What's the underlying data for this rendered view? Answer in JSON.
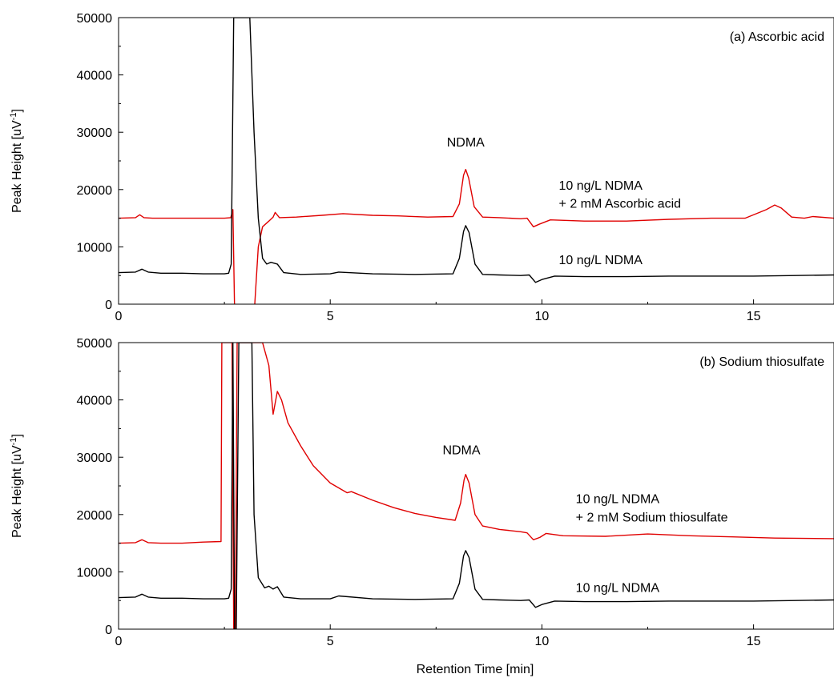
{
  "chart_data": [
    {
      "type": "line",
      "title": "",
      "panel_label": "(a) Ascorbic acid",
      "xlabel": "",
      "ylabel": "Peak Height [uV⁻¹]",
      "ylabel_base": "Peak Height [uV",
      "ylabel_sup": "-1",
      "ylabel_end": "]",
      "xlim": [
        0,
        16.9
      ],
      "ylim": [
        0,
        50000
      ],
      "x_ticks": [
        0,
        5,
        10,
        15
      ],
      "y_ticks": [
        0,
        10000,
        20000,
        30000,
        40000,
        50000
      ],
      "x_tick_labels": [
        "0",
        "5",
        "10",
        "15"
      ],
      "y_tick_labels": [
        "0",
        "10000",
        "20000",
        "30000",
        "40000",
        "50000"
      ],
      "grid": false,
      "annotations": [
        {
          "text": "NDMA",
          "x": 8.2,
          "y": 27500
        },
        {
          "text": "10 ng/L NDMA",
          "x": 10.4,
          "y": 20000
        },
        {
          "text": "+ 2 mM Ascorbic acid",
          "x": 10.4,
          "y": 16800
        },
        {
          "text": "10 ng/L NDMA",
          "x": 10.4,
          "y": 7000
        }
      ],
      "series": [
        {
          "color": "#e00000",
          "x": [
            0,
            0.4,
            0.5,
            0.6,
            0.8,
            1.5,
            2.0,
            2.5,
            2.65,
            2.7,
            2.74,
            2.78,
            2.85,
            3.2,
            3.3,
            3.4,
            3.55,
            3.65,
            3.7,
            3.8,
            4.2,
            4.8,
            5.3,
            6.0,
            6.6,
            7.3,
            7.9,
            8.05,
            8.15,
            8.2,
            8.27,
            8.4,
            8.6,
            9.0,
            9.5,
            9.65,
            9.8,
            9.95,
            10.2,
            11.0,
            12.0,
            13.0,
            14.0,
            14.8,
            15.3,
            15.5,
            15.65,
            15.9,
            16.2,
            16.4,
            16.9
          ],
          "y": [
            15000,
            15100,
            15600,
            15100,
            15000,
            15000,
            15000,
            15000,
            15100,
            16500,
            -1000,
            -3000,
            -1000,
            -2000,
            10000,
            13500,
            14500,
            15200,
            16000,
            15100,
            15200,
            15500,
            15800,
            15500,
            15400,
            15200,
            15300,
            17500,
            22500,
            23500,
            22000,
            17000,
            15200,
            15100,
            14900,
            15000,
            13500,
            14000,
            14700,
            14500,
            14500,
            14800,
            15000,
            15000,
            16500,
            17300,
            16800,
            15200,
            15000,
            15300,
            15000
          ]
        },
        {
          "color": "#000000",
          "x": [
            0,
            0.4,
            0.55,
            0.7,
            1.0,
            1.5,
            2.0,
            2.5,
            2.6,
            2.66,
            2.72,
            2.8,
            2.88,
            3.1,
            3.2,
            3.3,
            3.4,
            3.5,
            3.6,
            3.75,
            3.9,
            4.3,
            5.0,
            5.2,
            6.0,
            7.0,
            7.9,
            8.05,
            8.15,
            8.2,
            8.28,
            8.42,
            8.6,
            9.0,
            9.5,
            9.7,
            9.85,
            10.0,
            10.3,
            11.0,
            12.0,
            13.0,
            14.0,
            15.0,
            16.0,
            16.9
          ],
          "y": [
            5500,
            5600,
            6100,
            5600,
            5400,
            5400,
            5300,
            5300,
            5400,
            7000,
            50000,
            50000,
            50000,
            50000,
            30000,
            15000,
            8000,
            7000,
            7300,
            7000,
            5500,
            5200,
            5300,
            5600,
            5300,
            5200,
            5300,
            8000,
            12700,
            13700,
            12500,
            7000,
            5200,
            5100,
            5000,
            5100,
            3800,
            4300,
            4900,
            4800,
            4800,
            4900,
            4900,
            4900,
            5000,
            5100
          ]
        }
      ]
    },
    {
      "type": "line",
      "title": "",
      "panel_label": "(b) Sodium thiosulfate",
      "xlabel": "Retention Time [min]",
      "ylabel": "Peak Height [uV⁻¹]",
      "ylabel_base": "Peak Height [uV",
      "ylabel_sup": "-1",
      "ylabel_end": "]",
      "xlim": [
        0,
        16.9
      ],
      "ylim": [
        0,
        50000
      ],
      "x_ticks": [
        0,
        5,
        10,
        15
      ],
      "y_ticks": [
        0,
        10000,
        20000,
        30000,
        40000,
        50000
      ],
      "x_tick_labels": [
        "0",
        "5",
        "10",
        "15"
      ],
      "y_tick_labels": [
        "0",
        "10000",
        "20000",
        "30000",
        "40000",
        "50000"
      ],
      "grid": false,
      "annotations": [
        {
          "text": "NDMA",
          "x": 8.1,
          "y": 30500
        },
        {
          "text": "10 ng/L NDMA",
          "x": 10.8,
          "y": 22000
        },
        {
          "text": "+ 2 mM Sodium thiosulfate",
          "x": 10.8,
          "y": 18800
        },
        {
          "text": "10 ng/L NDMA",
          "x": 10.8,
          "y": 6500
        }
      ],
      "series": [
        {
          "color": "#e00000",
          "x": [
            0,
            0.4,
            0.55,
            0.7,
            1.0,
            1.5,
            2.0,
            2.42,
            2.44,
            2.46,
            2.5,
            2.55,
            2.58,
            2.62,
            2.68,
            2.72,
            2.76,
            2.8,
            3.0,
            3.4,
            3.55,
            3.65,
            3.75,
            3.85,
            4.0,
            4.3,
            4.6,
            5.0,
            5.4,
            5.5,
            6.0,
            6.5,
            7.0,
            7.5,
            7.95,
            8.08,
            8.16,
            8.2,
            8.28,
            8.42,
            8.6,
            9.0,
            9.5,
            9.65,
            9.8,
            9.95,
            10.1,
            10.5,
            11.5,
            12.5,
            13.5,
            14.5,
            15.5,
            16.9
          ],
          "y": [
            15000,
            15100,
            15600,
            15100,
            15000,
            15000,
            15200,
            15300,
            50000,
            50000,
            50000,
            50000,
            50000,
            50000,
            50000,
            0,
            0,
            50000,
            50000,
            50000,
            46000,
            37500,
            41500,
            40000,
            36000,
            32000,
            28500,
            25500,
            23800,
            24000,
            22500,
            21200,
            20200,
            19500,
            19000,
            22000,
            26000,
            27000,
            25500,
            20000,
            18000,
            17400,
            17000,
            16800,
            15600,
            16000,
            16700,
            16300,
            16200,
            16600,
            16300,
            16100,
            15900,
            15800
          ]
        },
        {
          "color": "#000000",
          "x": [
            0,
            0.4,
            0.55,
            0.7,
            1.0,
            1.5,
            2.0,
            2.5,
            2.6,
            2.66,
            2.7,
            2.74,
            2.78,
            2.84,
            2.9,
            3.0,
            3.1,
            3.15,
            3.2,
            3.3,
            3.45,
            3.55,
            3.65,
            3.75,
            3.9,
            4.3,
            5.0,
            5.2,
            6.0,
            7.0,
            7.9,
            8.05,
            8.15,
            8.2,
            8.28,
            8.42,
            8.6,
            9.0,
            9.5,
            9.7,
            9.85,
            10.0,
            10.3,
            11.0,
            12.0,
            13.0,
            14.0,
            15.0,
            16.0,
            16.9
          ],
          "y": [
            5500,
            5600,
            6100,
            5600,
            5400,
            5400,
            5300,
            5300,
            5400,
            7000,
            50000,
            0,
            0,
            50000,
            50000,
            50000,
            50000,
            50000,
            20000,
            9000,
            7200,
            7500,
            7000,
            7400,
            5600,
            5300,
            5300,
            5800,
            5300,
            5200,
            5300,
            8000,
            12800,
            13700,
            12500,
            7000,
            5200,
            5100,
            5000,
            5100,
            3800,
            4300,
            4900,
            4800,
            4800,
            4900,
            4900,
            4900,
            5000,
            5100
          ]
        }
      ]
    }
  ]
}
